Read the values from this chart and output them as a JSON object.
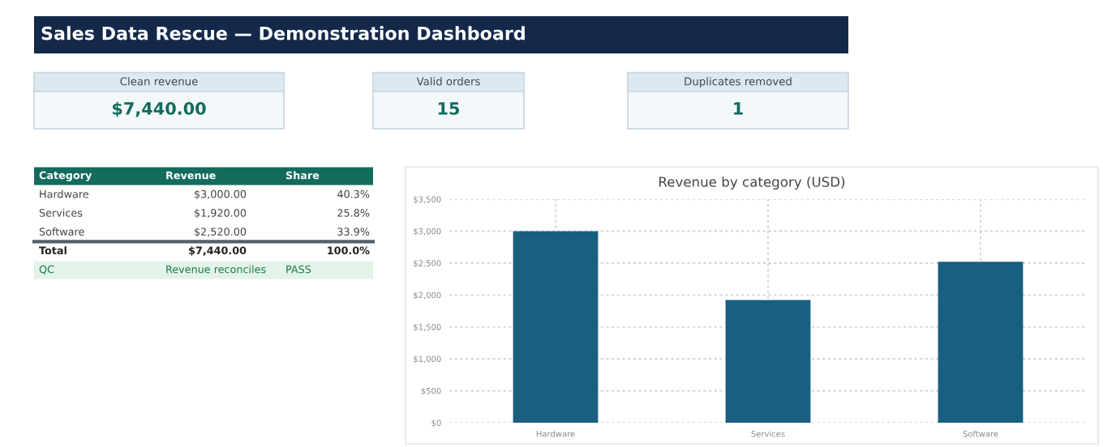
{
  "chart_data": [
    {
      "type": "other",
      "title": "Sales Data Rescue — Demonstration Dashboard",
      "annotations": [
        "Clean revenue",
        "$7,440.00",
        "Valid orders",
        "15",
        "Duplicates removed",
        "1",
        "Category",
        "Revenue",
        "Share",
        "Hardware",
        "$3,000.00",
        "40.3%",
        "Services",
        "$1,920.00",
        "25.8%",
        "Software",
        "$2,520.00",
        "33.9%",
        "Total",
        "$7,440.00",
        "100.0%",
        "QC",
        "Revenue reconciles",
        "PASS"
      ]
    },
    {
      "type": "bar",
      "title": "Revenue by category (USD)",
      "categories": [
        "Hardware",
        "Services",
        "Software"
      ],
      "values": [
        3000,
        1920,
        2520
      ],
      "color": "#1a5e80",
      "ylim": [
        0,
        3500
      ],
      "yticks": [
        {
          "value": 0,
          "label": "$0"
        },
        {
          "value": 500,
          "label": "$500"
        },
        {
          "value": 1000,
          "label": "$1,000"
        },
        {
          "value": 1500,
          "label": "$1,500"
        },
        {
          "value": 2000,
          "label": "$2,000"
        },
        {
          "value": 2500,
          "label": "$2,500"
        },
        {
          "value": 3000,
          "label": "$3,000"
        },
        {
          "value": 3500,
          "label": "$3,500"
        }
      ],
      "grid": true
    }
  ]
}
